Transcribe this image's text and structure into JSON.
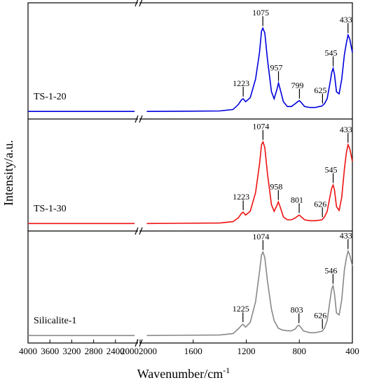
{
  "chart_data": {
    "type": "line",
    "xlabel": "Wavenumber/cm",
    "xlabel_sup": "-1",
    "ylabel": "Intensity/a.u.",
    "x_break": {
      "left": [
        4000,
        2000
      ],
      "right": [
        2000,
        400
      ]
    },
    "x_ticks": [
      "4000",
      "3600",
      "3200",
      "2800",
      "2400",
      "2000",
      "2000",
      "1600",
      "1200",
      "800",
      "400"
    ],
    "series": [
      {
        "name": "TS-1-20",
        "color": "#0000dd",
        "points": [
          [
            4000,
            0.02
          ],
          [
            2050,
            0.02
          ],
          [
            1950,
            0.02
          ],
          [
            1400,
            0.025
          ],
          [
            1300,
            0.04
          ],
          [
            1260,
            0.09
          ],
          [
            1235,
            0.14
          ],
          [
            1223,
            0.15
          ],
          [
            1205,
            0.12
          ],
          [
            1170,
            0.16
          ],
          [
            1130,
            0.35
          ],
          [
            1100,
            0.62
          ],
          [
            1085,
            0.84
          ],
          [
            1075,
            0.87
          ],
          [
            1060,
            0.82
          ],
          [
            1040,
            0.55
          ],
          [
            1010,
            0.22
          ],
          [
            990,
            0.15
          ],
          [
            970,
            0.24
          ],
          [
            957,
            0.31
          ],
          [
            945,
            0.25
          ],
          [
            920,
            0.12
          ],
          [
            890,
            0.07
          ],
          [
            860,
            0.07
          ],
          [
            830,
            0.1
          ],
          [
            812,
            0.12
          ],
          [
            799,
            0.13
          ],
          [
            785,
            0.11
          ],
          [
            760,
            0.07
          ],
          [
            720,
            0.06
          ],
          [
            680,
            0.06
          ],
          [
            650,
            0.07
          ],
          [
            630,
            0.075
          ],
          [
            625,
            0.08
          ],
          [
            610,
            0.1
          ],
          [
            590,
            0.15
          ],
          [
            570,
            0.3
          ],
          [
            555,
            0.42
          ],
          [
            545,
            0.46
          ],
          [
            535,
            0.4
          ],
          [
            520,
            0.22
          ],
          [
            500,
            0.2
          ],
          [
            480,
            0.35
          ],
          [
            460,
            0.6
          ],
          [
            445,
            0.72
          ],
          [
            433,
            0.8
          ],
          [
            420,
            0.76
          ],
          [
            400,
            0.62
          ]
        ],
        "peaks": [
          {
            "label": "1223",
            "x": 1223,
            "y": 0.15
          },
          {
            "label": "1075",
            "x": 1075,
            "y": 0.87
          },
          {
            "label": "957",
            "x": 957,
            "y": 0.31
          },
          {
            "label": "799",
            "x": 799,
            "y": 0.13
          },
          {
            "label": "625",
            "x": 625,
            "y": 0.08
          },
          {
            "label": "545",
            "x": 545,
            "y": 0.46
          },
          {
            "label": "433",
            "x": 433,
            "y": 0.8
          }
        ]
      },
      {
        "name": "TS-1-30",
        "color": "#ee1111",
        "points": [
          [
            4000,
            0.02
          ],
          [
            2050,
            0.02
          ],
          [
            1950,
            0.02
          ],
          [
            1400,
            0.025
          ],
          [
            1300,
            0.04
          ],
          [
            1260,
            0.08
          ],
          [
            1235,
            0.13
          ],
          [
            1223,
            0.14
          ],
          [
            1205,
            0.11
          ],
          [
            1170,
            0.15
          ],
          [
            1130,
            0.35
          ],
          [
            1100,
            0.65
          ],
          [
            1085,
            0.86
          ],
          [
            1074,
            0.89
          ],
          [
            1060,
            0.83
          ],
          [
            1040,
            0.55
          ],
          [
            1010,
            0.22
          ],
          [
            990,
            0.15
          ],
          [
            970,
            0.21
          ],
          [
            958,
            0.25
          ],
          [
            945,
            0.2
          ],
          [
            920,
            0.09
          ],
          [
            890,
            0.06
          ],
          [
            860,
            0.06
          ],
          [
            830,
            0.08
          ],
          [
            812,
            0.1
          ],
          [
            801,
            0.11
          ],
          [
            785,
            0.09
          ],
          [
            760,
            0.06
          ],
          [
            720,
            0.05
          ],
          [
            680,
            0.05
          ],
          [
            650,
            0.055
          ],
          [
            630,
            0.06
          ],
          [
            626,
            0.065
          ],
          [
            610,
            0.09
          ],
          [
            590,
            0.15
          ],
          [
            570,
            0.3
          ],
          [
            555,
            0.4
          ],
          [
            545,
            0.43
          ],
          [
            535,
            0.38
          ],
          [
            520,
            0.2
          ],
          [
            500,
            0.16
          ],
          [
            480,
            0.3
          ],
          [
            460,
            0.6
          ],
          [
            445,
            0.78
          ],
          [
            433,
            0.86
          ],
          [
            420,
            0.82
          ],
          [
            400,
            0.68
          ]
        ],
        "peaks": [
          {
            "label": "1223",
            "x": 1223,
            "y": 0.14
          },
          {
            "label": "1074",
            "x": 1074,
            "y": 0.89
          },
          {
            "label": "958",
            "x": 958,
            "y": 0.25
          },
          {
            "label": "801",
            "x": 801,
            "y": 0.11
          },
          {
            "label": "626",
            "x": 626,
            "y": 0.065
          },
          {
            "label": "545",
            "x": 545,
            "y": 0.43
          },
          {
            "label": "433",
            "x": 433,
            "y": 0.86
          }
        ]
      },
      {
        "name": "Silicalite-1",
        "color": "#888888",
        "points": [
          [
            4000,
            0.02
          ],
          [
            2050,
            0.02
          ],
          [
            1950,
            0.02
          ],
          [
            1400,
            0.025
          ],
          [
            1300,
            0.04
          ],
          [
            1260,
            0.09
          ],
          [
            1235,
            0.13
          ],
          [
            1225,
            0.14
          ],
          [
            1205,
            0.11
          ],
          [
            1170,
            0.16
          ],
          [
            1130,
            0.38
          ],
          [
            1100,
            0.7
          ],
          [
            1085,
            0.88
          ],
          [
            1074,
            0.91
          ],
          [
            1060,
            0.85
          ],
          [
            1040,
            0.6
          ],
          [
            1010,
            0.3
          ],
          [
            990,
            0.18
          ],
          [
            960,
            0.1
          ],
          [
            930,
            0.08
          ],
          [
            890,
            0.07
          ],
          [
            860,
            0.07
          ],
          [
            830,
            0.09
          ],
          [
            815,
            0.12
          ],
          [
            803,
            0.13
          ],
          [
            790,
            0.11
          ],
          [
            770,
            0.07
          ],
          [
            720,
            0.05
          ],
          [
            680,
            0.05
          ],
          [
            650,
            0.06
          ],
          [
            630,
            0.065
          ],
          [
            626,
            0.07
          ],
          [
            610,
            0.1
          ],
          [
            590,
            0.18
          ],
          [
            570,
            0.38
          ],
          [
            555,
            0.52
          ],
          [
            546,
            0.55
          ],
          [
            535,
            0.47
          ],
          [
            520,
            0.26
          ],
          [
            500,
            0.24
          ],
          [
            480,
            0.4
          ],
          [
            460,
            0.72
          ],
          [
            445,
            0.85
          ],
          [
            433,
            0.92
          ],
          [
            420,
            0.88
          ],
          [
            400,
            0.76
          ]
        ],
        "peaks": [
          {
            "label": "1225",
            "x": 1225,
            "y": 0.14
          },
          {
            "label": "1074",
            "x": 1074,
            "y": 0.91
          },
          {
            "label": "803",
            "x": 803,
            "y": 0.13
          },
          {
            "label": "626",
            "x": 626,
            "y": 0.07
          },
          {
            "label": "546",
            "x": 546,
            "y": 0.55
          },
          {
            "label": "433",
            "x": 433,
            "y": 0.92
          }
        ]
      }
    ]
  }
}
